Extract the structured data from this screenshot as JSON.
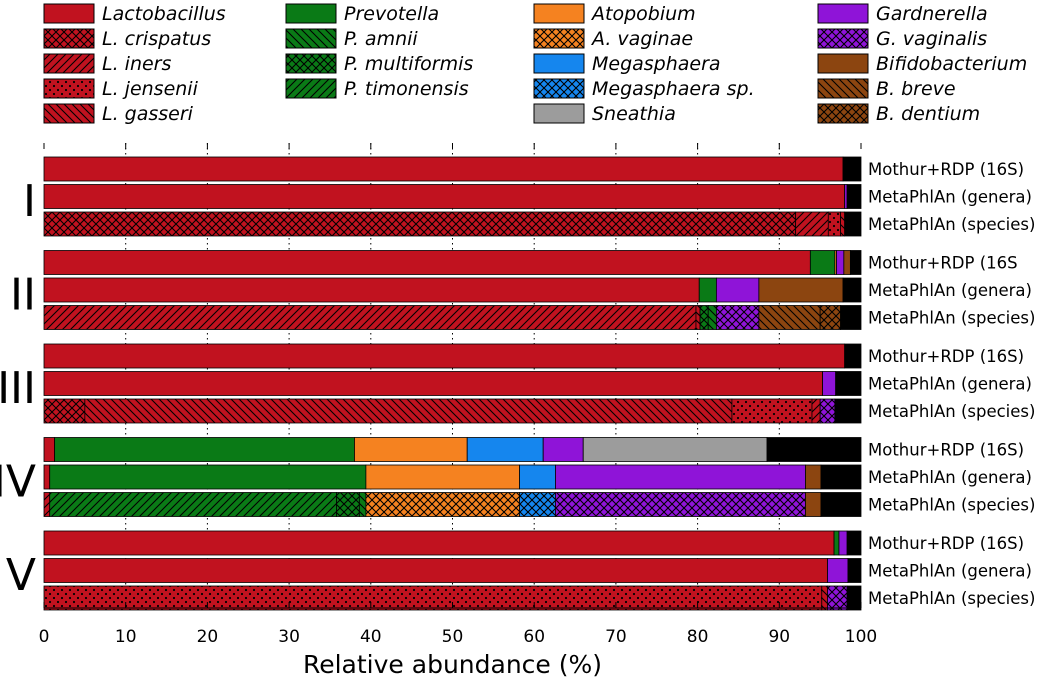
{
  "chart_data": {
    "type": "bar",
    "orientation": "horizontal",
    "stacked": true,
    "xlabel": "Relative abundance (%)",
    "xlim": [
      0,
      100
    ],
    "xticks": [
      0,
      10,
      20,
      30,
      40,
      50,
      60,
      70,
      80,
      90,
      100
    ],
    "grid": "vertical dotted",
    "legend_placement": "top",
    "colors": {
      "lactobacillus": "#c1121f",
      "prevotella": "#0a7a16",
      "atopobium": "#f58220",
      "megasphaera": "#1586ee",
      "sneathia": "#9c9c9c",
      "gardnerella": "#8f14d8",
      "bifidobacterium": "#8c4510",
      "other": "#000000"
    },
    "legend": [
      {
        "label": "Lactobacillus",
        "color": "lactobacillus",
        "pattern": "none"
      },
      {
        "label": "L. crispatus",
        "color": "lactobacillus",
        "pattern": "cross"
      },
      {
        "label": "L. iners",
        "color": "lactobacillus",
        "pattern": "fdiag"
      },
      {
        "label": "L. jensenii",
        "color": "lactobacillus",
        "pattern": "dots"
      },
      {
        "label": "L. gasseri",
        "color": "lactobacillus",
        "pattern": "bdiag"
      },
      {
        "label": "Prevotella",
        "color": "prevotella",
        "pattern": "none"
      },
      {
        "label": "P. amnii",
        "color": "prevotella",
        "pattern": "bdiag"
      },
      {
        "label": "P. multiformis",
        "color": "prevotella",
        "pattern": "cross"
      },
      {
        "label": "P. timonensis",
        "color": "prevotella",
        "pattern": "fdiag"
      },
      {
        "label": "Atopobium",
        "color": "atopobium",
        "pattern": "none"
      },
      {
        "label": "A. vaginae",
        "color": "atopobium",
        "pattern": "cross"
      },
      {
        "label": "Megasphaera",
        "color": "megasphaera",
        "pattern": "none"
      },
      {
        "label": "Megasphaera sp.",
        "color": "megasphaera",
        "pattern": "cross"
      },
      {
        "label": "Sneathia",
        "color": "sneathia",
        "pattern": "none"
      },
      {
        "label": "Gardnerella",
        "color": "gardnerella",
        "pattern": "none"
      },
      {
        "label": "G. vaginalis",
        "color": "gardnerella",
        "pattern": "cross"
      },
      {
        "label": "Bifidobacterium",
        "color": "bifidobacterium",
        "pattern": "none"
      },
      {
        "label": "B. breve",
        "color": "bifidobacterium",
        "pattern": "bdiag"
      },
      {
        "label": "B. dentium",
        "color": "bifidobacterium",
        "pattern": "cross"
      }
    ],
    "groups": [
      {
        "label": "I",
        "rows": [
          {
            "label": "Mothur+RDP (16S)",
            "segments": [
              {
                "taxon": "Lactobacillus",
                "value": 97.8
              },
              {
                "taxon": "Other",
                "value": 2.2
              }
            ]
          },
          {
            "label": "MetaPhlAn (genera)",
            "segments": [
              {
                "taxon": "Lactobacillus",
                "value": 98.0
              },
              {
                "taxon": "Gardnerella",
                "value": 0.3
              },
              {
                "taxon": "Other",
                "value": 1.7
              }
            ]
          },
          {
            "label": "MetaPhlAn (species)",
            "segments": [
              {
                "taxon": "L. crispatus",
                "value": 92.0
              },
              {
                "taxon": "L. iners",
                "value": 4.0
              },
              {
                "taxon": "L. jensenii",
                "value": 1.5
              },
              {
                "taxon": "L. gasseri",
                "value": 0.5
              },
              {
                "taxon": "Other",
                "value": 2.0
              }
            ]
          }
        ]
      },
      {
        "label": "II",
        "rows": [
          {
            "label": "Mothur+RDP (16S",
            "segments": [
              {
                "taxon": "Lactobacillus",
                "value": 93.8
              },
              {
                "taxon": "Prevotella",
                "value": 3.0
              },
              {
                "taxon": "Atopobium",
                "value": 0.2
              },
              {
                "taxon": "Gardnerella",
                "value": 0.9
              },
              {
                "taxon": "Bifidobacterium",
                "value": 0.8
              },
              {
                "taxon": "Other",
                "value": 1.3
              }
            ]
          },
          {
            "label": "MetaPhlAn (genera)",
            "segments": [
              {
                "taxon": "Lactobacillus",
                "value": 80.2
              },
              {
                "taxon": "Prevotella",
                "value": 2.1
              },
              {
                "taxon": "Gardnerella",
                "value": 5.2
              },
              {
                "taxon": "Bifidobacterium",
                "value": 10.3
              },
              {
                "taxon": "Other",
                "value": 2.2
              }
            ]
          },
          {
            "label": "MetaPhlAn (species)",
            "segments": [
              {
                "taxon": "L. iners",
                "value": 79.8
              },
              {
                "taxon": "L. gasseri",
                "value": 0.5
              },
              {
                "taxon": "P. multiformis",
                "value": 1.0
              },
              {
                "taxon": "P. amnii",
                "value": 1.0
              },
              {
                "taxon": "G. vaginalis",
                "value": 5.2
              },
              {
                "taxon": "B. breve",
                "value": 7.5
              },
              {
                "taxon": "B. dentium",
                "value": 2.5
              },
              {
                "taxon": "Other",
                "value": 2.5
              }
            ]
          }
        ]
      },
      {
        "label": "III",
        "rows": [
          {
            "label": "Mothur+RDP (16S)",
            "segments": [
              {
                "taxon": "Lactobacillus",
                "value": 98.0
              },
              {
                "taxon": "Other",
                "value": 2.0
              }
            ]
          },
          {
            "label": "MetaPhlAn (genera)",
            "segments": [
              {
                "taxon": "Lactobacillus",
                "value": 95.3
              },
              {
                "taxon": "Gardnerella",
                "value": 1.6
              },
              {
                "taxon": "Other",
                "value": 3.1
              }
            ]
          },
          {
            "label": "MetaPhlAn (species)",
            "segments": [
              {
                "taxon": "L. crispatus",
                "value": 5.0
              },
              {
                "taxon": "L. gasseri",
                "value": 79.2
              },
              {
                "taxon": "L. jensenii",
                "value": 9.8
              },
              {
                "taxon": "L. iners",
                "value": 1.0
              },
              {
                "taxon": "G. vaginalis",
                "value": 1.8
              },
              {
                "taxon": "Other",
                "value": 3.2
              }
            ]
          }
        ]
      },
      {
        "label": "IV",
        "rows": [
          {
            "label": "Mothur+RDP (16S)",
            "segments": [
              {
                "taxon": "Lactobacillus",
                "value": 1.3
              },
              {
                "taxon": "Prevotella",
                "value": 36.7
              },
              {
                "taxon": "Atopobium",
                "value": 13.8
              },
              {
                "taxon": "Megasphaera",
                "value": 9.3
              },
              {
                "taxon": "Gardnerella",
                "value": 4.9
              },
              {
                "taxon": "Sneathia",
                "value": 22.5
              },
              {
                "taxon": "Other",
                "value": 11.5
              }
            ]
          },
          {
            "label": "MetaPhlAn (genera)",
            "segments": [
              {
                "taxon": "Lactobacillus",
                "value": 0.7
              },
              {
                "taxon": "Prevotella",
                "value": 38.7
              },
              {
                "taxon": "Atopobium",
                "value": 18.8
              },
              {
                "taxon": "Megasphaera",
                "value": 4.4
              },
              {
                "taxon": "Gardnerella",
                "value": 30.6
              },
              {
                "taxon": "Bifidobacterium",
                "value": 1.9
              },
              {
                "taxon": "Other",
                "value": 4.9
              }
            ]
          },
          {
            "label": "MetaPhlAn (species)",
            "segments": [
              {
                "taxon": "L. iners",
                "value": 0.7
              },
              {
                "taxon": "P. timonensis",
                "value": 35.1
              },
              {
                "taxon": "P. multiformis",
                "value": 2.8
              },
              {
                "taxon": "P. amnii",
                "value": 0.8
              },
              {
                "taxon": "A. vaginae",
                "value": 18.8
              },
              {
                "taxon": "Megasphaera sp.",
                "value": 4.4
              },
              {
                "taxon": "G. vaginalis",
                "value": 30.6
              },
              {
                "taxon": "Bifidobacterium",
                "value": 1.9
              },
              {
                "taxon": "Other",
                "value": 4.9
              }
            ]
          }
        ]
      },
      {
        "label": "V",
        "rows": [
          {
            "label": "Mothur+RDP (16S)",
            "segments": [
              {
                "taxon": "Lactobacillus",
                "value": 96.7
              },
              {
                "taxon": "Prevotella",
                "value": 0.6
              },
              {
                "taxon": "Gardnerella",
                "value": 1.0
              },
              {
                "taxon": "Other",
                "value": 1.7
              }
            ]
          },
          {
            "label": "MetaPhlAn (genera)",
            "segments": [
              {
                "taxon": "Lactobacillus",
                "value": 95.9
              },
              {
                "taxon": "Gardnerella",
                "value": 2.5
              },
              {
                "taxon": "Other",
                "value": 1.6
              }
            ]
          },
          {
            "label": "MetaPhlAn (species)",
            "segments": [
              {
                "taxon": "L. jensenii",
                "value": 95.2
              },
              {
                "taxon": "L. gasseri",
                "value": 0.7
              },
              {
                "taxon": "G. vaginalis",
                "value": 2.4
              },
              {
                "taxon": "Other",
                "value": 1.7
              }
            ]
          }
        ]
      }
    ]
  }
}
